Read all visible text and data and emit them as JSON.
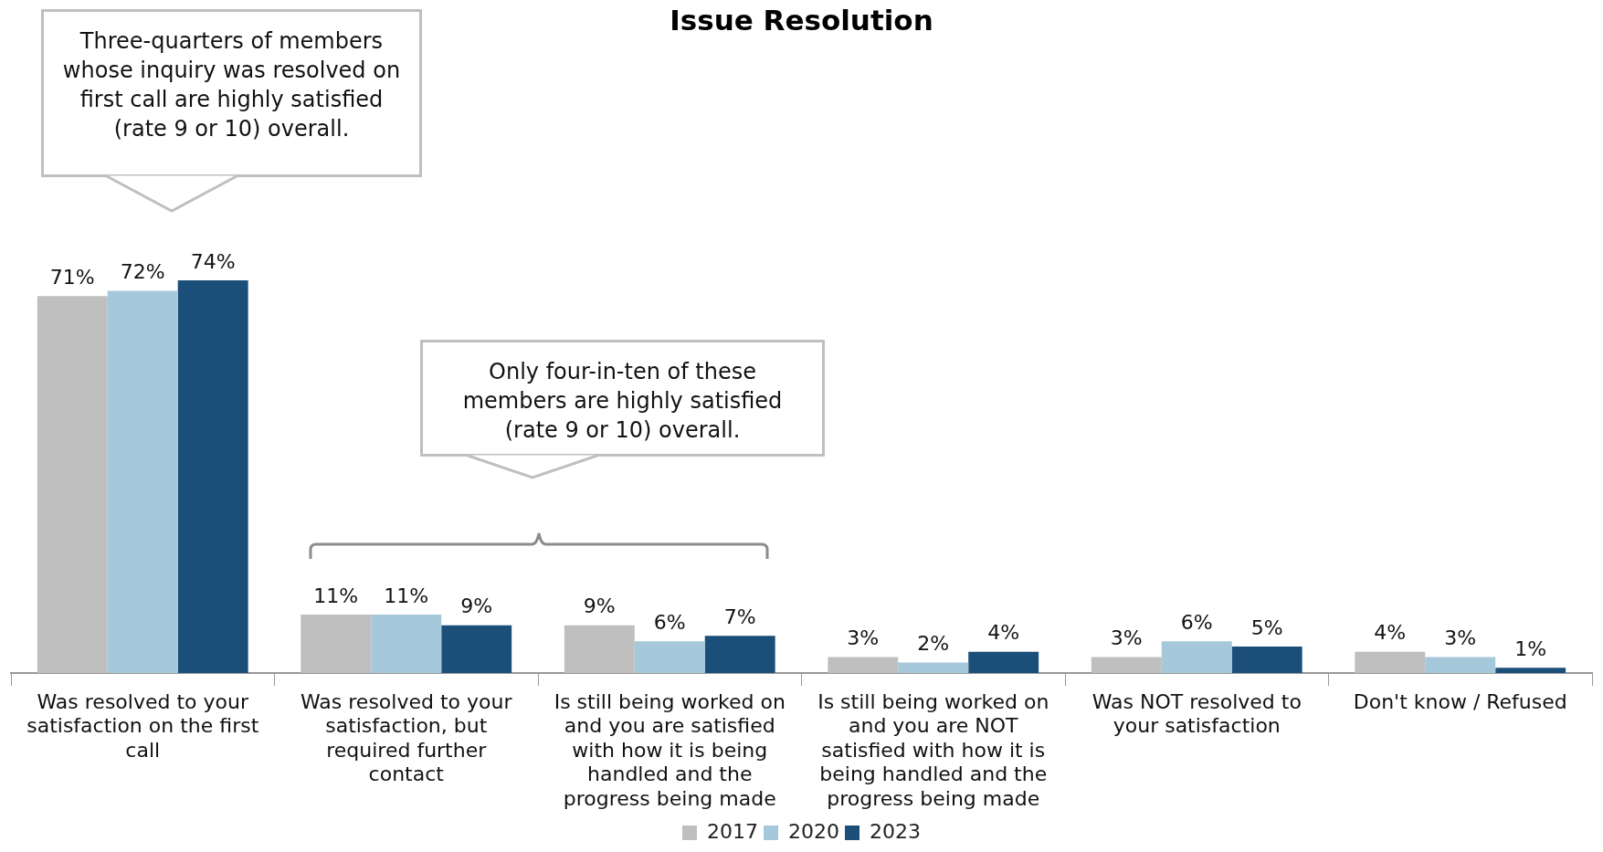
{
  "chart_data": {
    "type": "bar",
    "title": "Issue Resolution",
    "categories": [
      "Was resolved to your satisfaction on the first call",
      "Was resolved to your satisfaction, but required further contact",
      "Is still being worked on and you are satisfied with how it is being handled and the progress being made",
      "Is still being worked on and you are NOT satisfied with how it is being handled and the progress being made",
      "Was NOT resolved to your satisfaction",
      "Don't know / Refused"
    ],
    "series": [
      {
        "name": "2017",
        "color": "#bfbfbf",
        "values": [
          71,
          11,
          9,
          3,
          3,
          4
        ],
        "value_labels": [
          "71%",
          "11%",
          "9%",
          "3%",
          "3%",
          "4%"
        ]
      },
      {
        "name": "2020",
        "color": "#a5c8da",
        "values": [
          72,
          11,
          6,
          2,
          6,
          3
        ],
        "value_labels": [
          "72%",
          "11%",
          "6%",
          "2%",
          "6%",
          "3%"
        ]
      },
      {
        "name": "2023",
        "color": "#1b4f7a",
        "values": [
          74,
          9,
          7,
          4,
          5,
          1
        ],
        "value_labels": [
          "74%",
          "9%",
          "7%",
          "4%",
          "5%",
          "1%"
        ]
      }
    ],
    "legend": "bottom",
    "grid": false,
    "annotations": [
      "Three-quarters of members whose inquiry was resolved on first call are highly satisfied (rate 9 or 10) overall.",
      "Only four-in-ten of these members are highly satisfied (rate 9 or 10) overall."
    ]
  }
}
